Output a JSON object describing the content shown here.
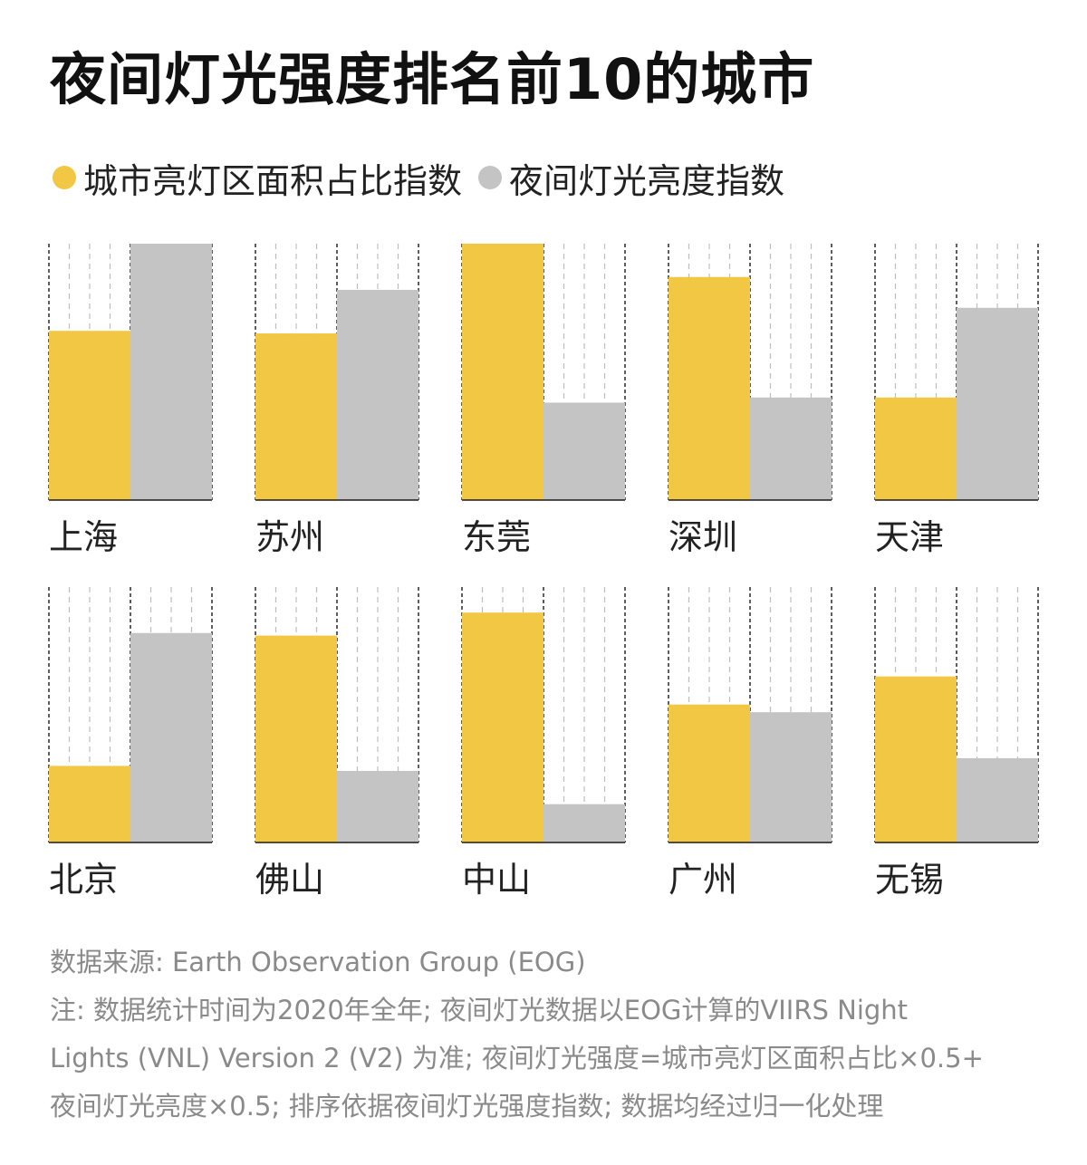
{
  "title": "夜间灯光强度排名前10的城市",
  "legend": [
    {
      "label": "城市亮灯区面积占比指数",
      "color": "#f2c744"
    },
    {
      "label": "夜间灯光亮度指数",
      "color": "#c3c4c3"
    }
  ],
  "chart_data": {
    "type": "bar",
    "categories": [
      "上海",
      "苏州",
      "东莞",
      "深圳",
      "天津",
      "北京",
      "佛山",
      "中山",
      "广州",
      "无锡"
    ],
    "series": [
      {
        "name": "城市亮灯区面积占比指数",
        "color": "#f2c744",
        "values": [
          0.66,
          0.65,
          1.0,
          0.87,
          0.4,
          0.3,
          0.81,
          0.9,
          0.54,
          0.65
        ]
      },
      {
        "name": "夜间灯光亮度指数",
        "color": "#c3c4c3",
        "values": [
          1.0,
          0.82,
          0.38,
          0.4,
          0.75,
          0.82,
          0.28,
          0.15,
          0.51,
          0.33
        ]
      }
    ],
    "ylim": [
      0,
      1
    ],
    "grid": true
  },
  "footer": {
    "source": "数据来源: Earth Observation Group (EOG)",
    "note_lines": [
      "注: 数据统计时间为2020年全年; 夜间灯光数据以EOG计算的VIIRS Night",
      "Lights (VNL) Version 2 (V2) 为准; 夜间灯光强度=城市亮灯区面积占比×0.5+",
      "夜间灯光亮度×0.5; 排序依据夜间灯光强度指数; 数据均经过归一化处理"
    ]
  }
}
